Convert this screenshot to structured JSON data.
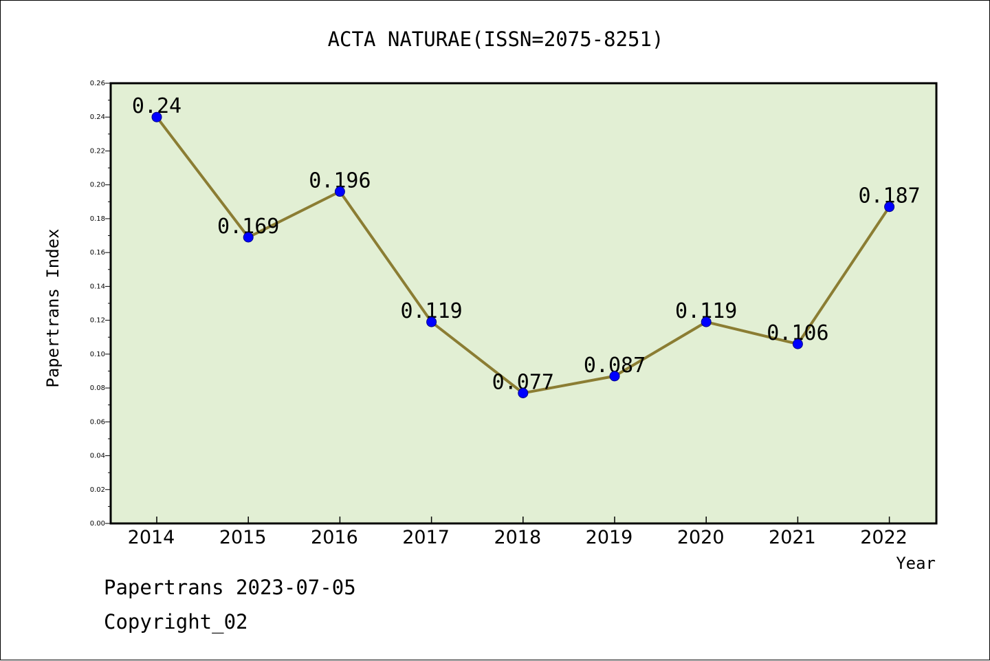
{
  "chart_data": {
    "type": "line",
    "title": "ACTA NATURAE(ISSN=2075-8251)",
    "xlabel": "Year",
    "ylabel": "Papertrans Index",
    "categories": [
      "2014",
      "2015",
      "2016",
      "2017",
      "2018",
      "2019",
      "2020",
      "2021",
      "2022"
    ],
    "values": [
      0.24,
      0.169,
      0.196,
      0.119,
      0.077,
      0.087,
      0.119,
      0.106,
      0.187
    ],
    "data_labels": [
      "0.24",
      "0.169",
      "0.196",
      "0.119",
      "0.077",
      "0.087",
      "0.119",
      "0.106",
      "0.187"
    ],
    "ylim": [
      0,
      0.26
    ],
    "yticks": [
      "0.00",
      "0.02",
      "0.04",
      "0.06",
      "0.08",
      "0.10",
      "0.12",
      "0.14",
      "0.16",
      "0.18",
      "0.20",
      "0.22",
      "0.24",
      "0.26"
    ],
    "grid": false,
    "legend": "none",
    "colors": {
      "plot_background": "#e2efd4",
      "line": "#8b7d33",
      "marker_fill": "#0000ff",
      "marker_edge": "#00008b"
    }
  },
  "footer": {
    "line1": "Papertrans 2023-07-05",
    "line2": "Copyright_02"
  }
}
